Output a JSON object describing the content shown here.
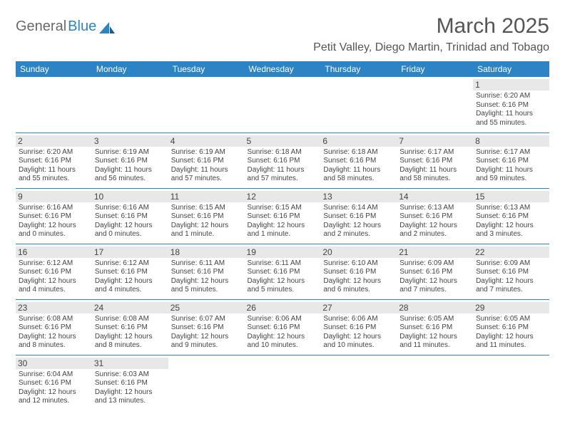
{
  "brand": {
    "general": "General",
    "blue": "Blue"
  },
  "title": "March 2025",
  "location": "Petit Valley, Diego Martin, Trinidad and Tobago",
  "colors": {
    "header_bg": "#2d84c4",
    "header_text": "#ffffff",
    "daynum_bg": "#e8e8e8",
    "text": "#444444",
    "border": "#2d84c4",
    "background": "#ffffff"
  },
  "day_headers": [
    "Sunday",
    "Monday",
    "Tuesday",
    "Wednesday",
    "Thursday",
    "Friday",
    "Saturday"
  ],
  "weeks": [
    [
      null,
      null,
      null,
      null,
      null,
      null,
      {
        "n": "1",
        "sr": "Sunrise: 6:20 AM",
        "ss": "Sunset: 6:16 PM",
        "dl": "Daylight: 11 hours and 55 minutes."
      }
    ],
    [
      {
        "n": "2",
        "sr": "Sunrise: 6:20 AM",
        "ss": "Sunset: 6:16 PM",
        "dl": "Daylight: 11 hours and 55 minutes."
      },
      {
        "n": "3",
        "sr": "Sunrise: 6:19 AM",
        "ss": "Sunset: 6:16 PM",
        "dl": "Daylight: 11 hours and 56 minutes."
      },
      {
        "n": "4",
        "sr": "Sunrise: 6:19 AM",
        "ss": "Sunset: 6:16 PM",
        "dl": "Daylight: 11 hours and 57 minutes."
      },
      {
        "n": "5",
        "sr": "Sunrise: 6:18 AM",
        "ss": "Sunset: 6:16 PM",
        "dl": "Daylight: 11 hours and 57 minutes."
      },
      {
        "n": "6",
        "sr": "Sunrise: 6:18 AM",
        "ss": "Sunset: 6:16 PM",
        "dl": "Daylight: 11 hours and 58 minutes."
      },
      {
        "n": "7",
        "sr": "Sunrise: 6:17 AM",
        "ss": "Sunset: 6:16 PM",
        "dl": "Daylight: 11 hours and 58 minutes."
      },
      {
        "n": "8",
        "sr": "Sunrise: 6:17 AM",
        "ss": "Sunset: 6:16 PM",
        "dl": "Daylight: 11 hours and 59 minutes."
      }
    ],
    [
      {
        "n": "9",
        "sr": "Sunrise: 6:16 AM",
        "ss": "Sunset: 6:16 PM",
        "dl": "Daylight: 12 hours and 0 minutes."
      },
      {
        "n": "10",
        "sr": "Sunrise: 6:16 AM",
        "ss": "Sunset: 6:16 PM",
        "dl": "Daylight: 12 hours and 0 minutes."
      },
      {
        "n": "11",
        "sr": "Sunrise: 6:15 AM",
        "ss": "Sunset: 6:16 PM",
        "dl": "Daylight: 12 hours and 1 minute."
      },
      {
        "n": "12",
        "sr": "Sunrise: 6:15 AM",
        "ss": "Sunset: 6:16 PM",
        "dl": "Daylight: 12 hours and 1 minute."
      },
      {
        "n": "13",
        "sr": "Sunrise: 6:14 AM",
        "ss": "Sunset: 6:16 PM",
        "dl": "Daylight: 12 hours and 2 minutes."
      },
      {
        "n": "14",
        "sr": "Sunrise: 6:13 AM",
        "ss": "Sunset: 6:16 PM",
        "dl": "Daylight: 12 hours and 2 minutes."
      },
      {
        "n": "15",
        "sr": "Sunrise: 6:13 AM",
        "ss": "Sunset: 6:16 PM",
        "dl": "Daylight: 12 hours and 3 minutes."
      }
    ],
    [
      {
        "n": "16",
        "sr": "Sunrise: 6:12 AM",
        "ss": "Sunset: 6:16 PM",
        "dl": "Daylight: 12 hours and 4 minutes."
      },
      {
        "n": "17",
        "sr": "Sunrise: 6:12 AM",
        "ss": "Sunset: 6:16 PM",
        "dl": "Daylight: 12 hours and 4 minutes."
      },
      {
        "n": "18",
        "sr": "Sunrise: 6:11 AM",
        "ss": "Sunset: 6:16 PM",
        "dl": "Daylight: 12 hours and 5 minutes."
      },
      {
        "n": "19",
        "sr": "Sunrise: 6:11 AM",
        "ss": "Sunset: 6:16 PM",
        "dl": "Daylight: 12 hours and 5 minutes."
      },
      {
        "n": "20",
        "sr": "Sunrise: 6:10 AM",
        "ss": "Sunset: 6:16 PM",
        "dl": "Daylight: 12 hours and 6 minutes."
      },
      {
        "n": "21",
        "sr": "Sunrise: 6:09 AM",
        "ss": "Sunset: 6:16 PM",
        "dl": "Daylight: 12 hours and 7 minutes."
      },
      {
        "n": "22",
        "sr": "Sunrise: 6:09 AM",
        "ss": "Sunset: 6:16 PM",
        "dl": "Daylight: 12 hours and 7 minutes."
      }
    ],
    [
      {
        "n": "23",
        "sr": "Sunrise: 6:08 AM",
        "ss": "Sunset: 6:16 PM",
        "dl": "Daylight: 12 hours and 8 minutes."
      },
      {
        "n": "24",
        "sr": "Sunrise: 6:08 AM",
        "ss": "Sunset: 6:16 PM",
        "dl": "Daylight: 12 hours and 8 minutes."
      },
      {
        "n": "25",
        "sr": "Sunrise: 6:07 AM",
        "ss": "Sunset: 6:16 PM",
        "dl": "Daylight: 12 hours and 9 minutes."
      },
      {
        "n": "26",
        "sr": "Sunrise: 6:06 AM",
        "ss": "Sunset: 6:16 PM",
        "dl": "Daylight: 12 hours and 10 minutes."
      },
      {
        "n": "27",
        "sr": "Sunrise: 6:06 AM",
        "ss": "Sunset: 6:16 PM",
        "dl": "Daylight: 12 hours and 10 minutes."
      },
      {
        "n": "28",
        "sr": "Sunrise: 6:05 AM",
        "ss": "Sunset: 6:16 PM",
        "dl": "Daylight: 12 hours and 11 minutes."
      },
      {
        "n": "29",
        "sr": "Sunrise: 6:05 AM",
        "ss": "Sunset: 6:16 PM",
        "dl": "Daylight: 12 hours and 11 minutes."
      }
    ],
    [
      {
        "n": "30",
        "sr": "Sunrise: 6:04 AM",
        "ss": "Sunset: 6:16 PM",
        "dl": "Daylight: 12 hours and 12 minutes."
      },
      {
        "n": "31",
        "sr": "Sunrise: 6:03 AM",
        "ss": "Sunset: 6:16 PM",
        "dl": "Daylight: 12 hours and 13 minutes."
      },
      null,
      null,
      null,
      null,
      null
    ]
  ]
}
